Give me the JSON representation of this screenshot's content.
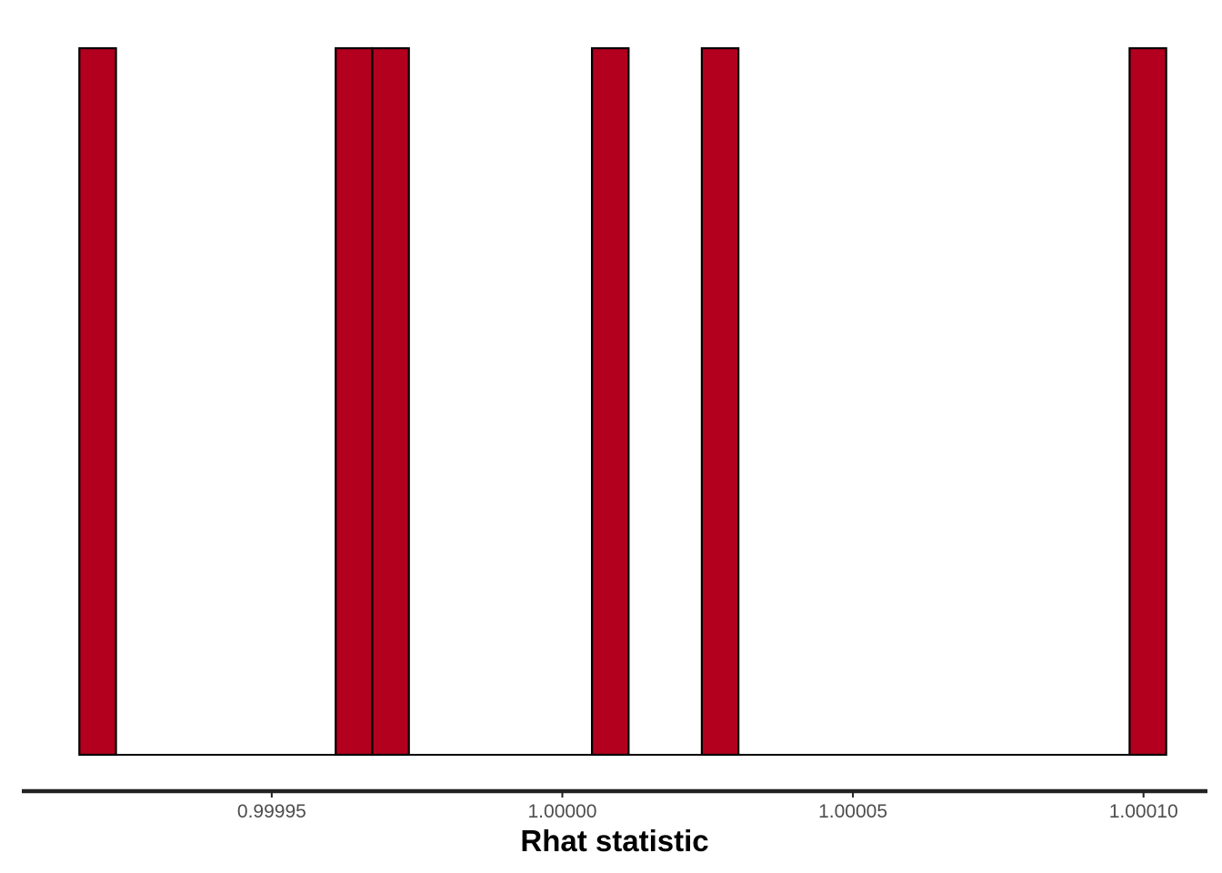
{
  "chart_data": {
    "type": "bar",
    "title": "",
    "xlabel": "Rhat statistic",
    "ylabel": "",
    "xlim": [
      0.999907,
      1.000111
    ],
    "x_ticks": [
      0.99995,
      1.0,
      1.00005,
      1.0001
    ],
    "x_tick_labels": [
      "0.99995",
      "1.00000",
      "1.00005",
      "1.00010"
    ],
    "bin_width": 6.3e-06,
    "bins": [
      {
        "x_start": 0.9999169,
        "count": 1
      },
      {
        "x_start": 0.999961,
        "count": 1
      },
      {
        "x_start": 0.9999673,
        "count": 1
      },
      {
        "x_start": 1.0000051,
        "count": 1
      },
      {
        "x_start": 1.000024,
        "count": 1
      },
      {
        "x_start": 1.0000976,
        "count": 1
      }
    ],
    "x_range_binned": [
      0.9999169,
      1.0001039
    ],
    "y_max": 1,
    "grid": false,
    "legend": "none",
    "colors": {
      "fill": "#b2001e",
      "outline": "#000000",
      "axis": "#222222",
      "tick_text": "#4d4d4d"
    }
  }
}
